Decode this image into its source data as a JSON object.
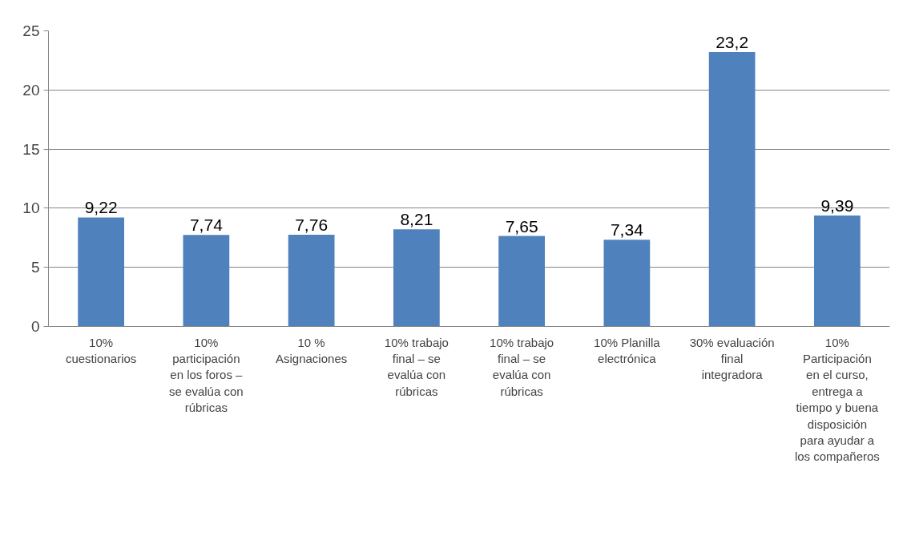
{
  "chart_data": {
    "type": "bar",
    "categories": [
      "10% cuestionarios",
      "10% participación en los foros – se evalúa con rúbricas",
      "10 % Asignaciones",
      "10% trabajo final – se evalúa con rúbricas",
      "10% trabajo final – se evalúa con rúbricas",
      "10% Planilla electrónica",
      "30% evaluación final integradora",
      "10% Participación en el curso, entrega a tiempo y buena disposición para ayudar a los compañeros"
    ],
    "values": [
      9.22,
      7.74,
      7.76,
      8.21,
      7.65,
      7.34,
      23.2,
      9.39
    ],
    "value_labels": [
      "9,22",
      "7,74",
      "7,76",
      "8,21",
      "7,65",
      "7,34",
      "23,2",
      "9,39"
    ],
    "color": "#4f81bd",
    "ylim": [
      0,
      25
    ],
    "yticks": [
      0,
      5,
      10,
      15,
      20,
      25
    ],
    "grid": "y"
  }
}
